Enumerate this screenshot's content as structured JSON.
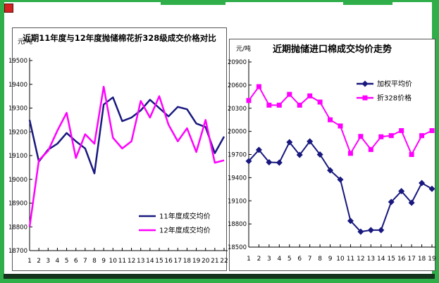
{
  "page": {
    "frame_color": "#2fae4a",
    "bottom_bar_color": "#14321c",
    "corner_icon_color": "#d42222"
  },
  "chart_data": [
    {
      "type": "line",
      "title": "近期11年度与12年度抛储棉花折328级成交价格对比",
      "unit_label": "元/吨",
      "x": [
        1,
        2,
        3,
        4,
        5,
        6,
        7,
        8,
        9,
        10,
        11,
        12,
        13,
        14,
        15,
        16,
        17,
        18,
        19,
        20,
        21,
        22
      ],
      "ylim": [
        18700,
        19500
      ],
      "ystep": 100,
      "y_ticks": [
        19500,
        19400,
        19300,
        19200,
        19100,
        19000,
        18900,
        18800,
        18700
      ],
      "grid": false,
      "legend_position": "inside-bottom-right",
      "series": [
        {
          "name": "11年度成交均价",
          "color": "#18187e",
          "marker": "none",
          "values": [
            19250,
            19075,
            19125,
            19150,
            19195,
            19160,
            19130,
            19025,
            19315,
            19345,
            19245,
            19260,
            19290,
            19335,
            19300,
            19265,
            19305,
            19295,
            19235,
            19220,
            19110,
            19180
          ]
        },
        {
          "name": "12年度成交均价",
          "color": "#ff00ff",
          "marker": "none",
          "values": [
            18800,
            19080,
            19120,
            19205,
            19280,
            19090,
            19190,
            19150,
            19390,
            19175,
            19130,
            19160,
            19330,
            19260,
            19350,
            19230,
            19160,
            19215,
            19115,
            19250,
            19070,
            19080
          ]
        }
      ]
    },
    {
      "type": "line",
      "title": "近期抛储进口棉成交均价走势",
      "unit_label": "元/吨",
      "x": [
        1,
        2,
        3,
        4,
        5,
        6,
        7,
        8,
        9,
        10,
        11,
        12,
        13,
        14,
        15,
        16,
        17,
        18,
        19
      ],
      "ylim": [
        18500,
        20900
      ],
      "ystep": 300,
      "y_ticks": [
        20900,
        20600,
        20300,
        20000,
        19700,
        19400,
        19100,
        18800,
        18500
      ],
      "grid": false,
      "legend_position": "inside-top-right",
      "series": [
        {
          "name": "加权平均价",
          "color": "#18187e",
          "marker": "diamond",
          "values": [
            19615,
            19760,
            19600,
            19595,
            19860,
            19695,
            19870,
            19700,
            19495,
            19375,
            18840,
            18700,
            18720,
            18720,
            19085,
            19225,
            19075,
            19330,
            19255
          ]
        },
        {
          "name": "折328价格",
          "color": "#ff00ff",
          "marker": "square",
          "values": [
            20400,
            20580,
            20340,
            20340,
            20480,
            20340,
            20460,
            20380,
            20150,
            20070,
            19715,
            19935,
            19765,
            19930,
            19945,
            20010,
            19700,
            19945,
            20010
          ]
        }
      ]
    }
  ]
}
